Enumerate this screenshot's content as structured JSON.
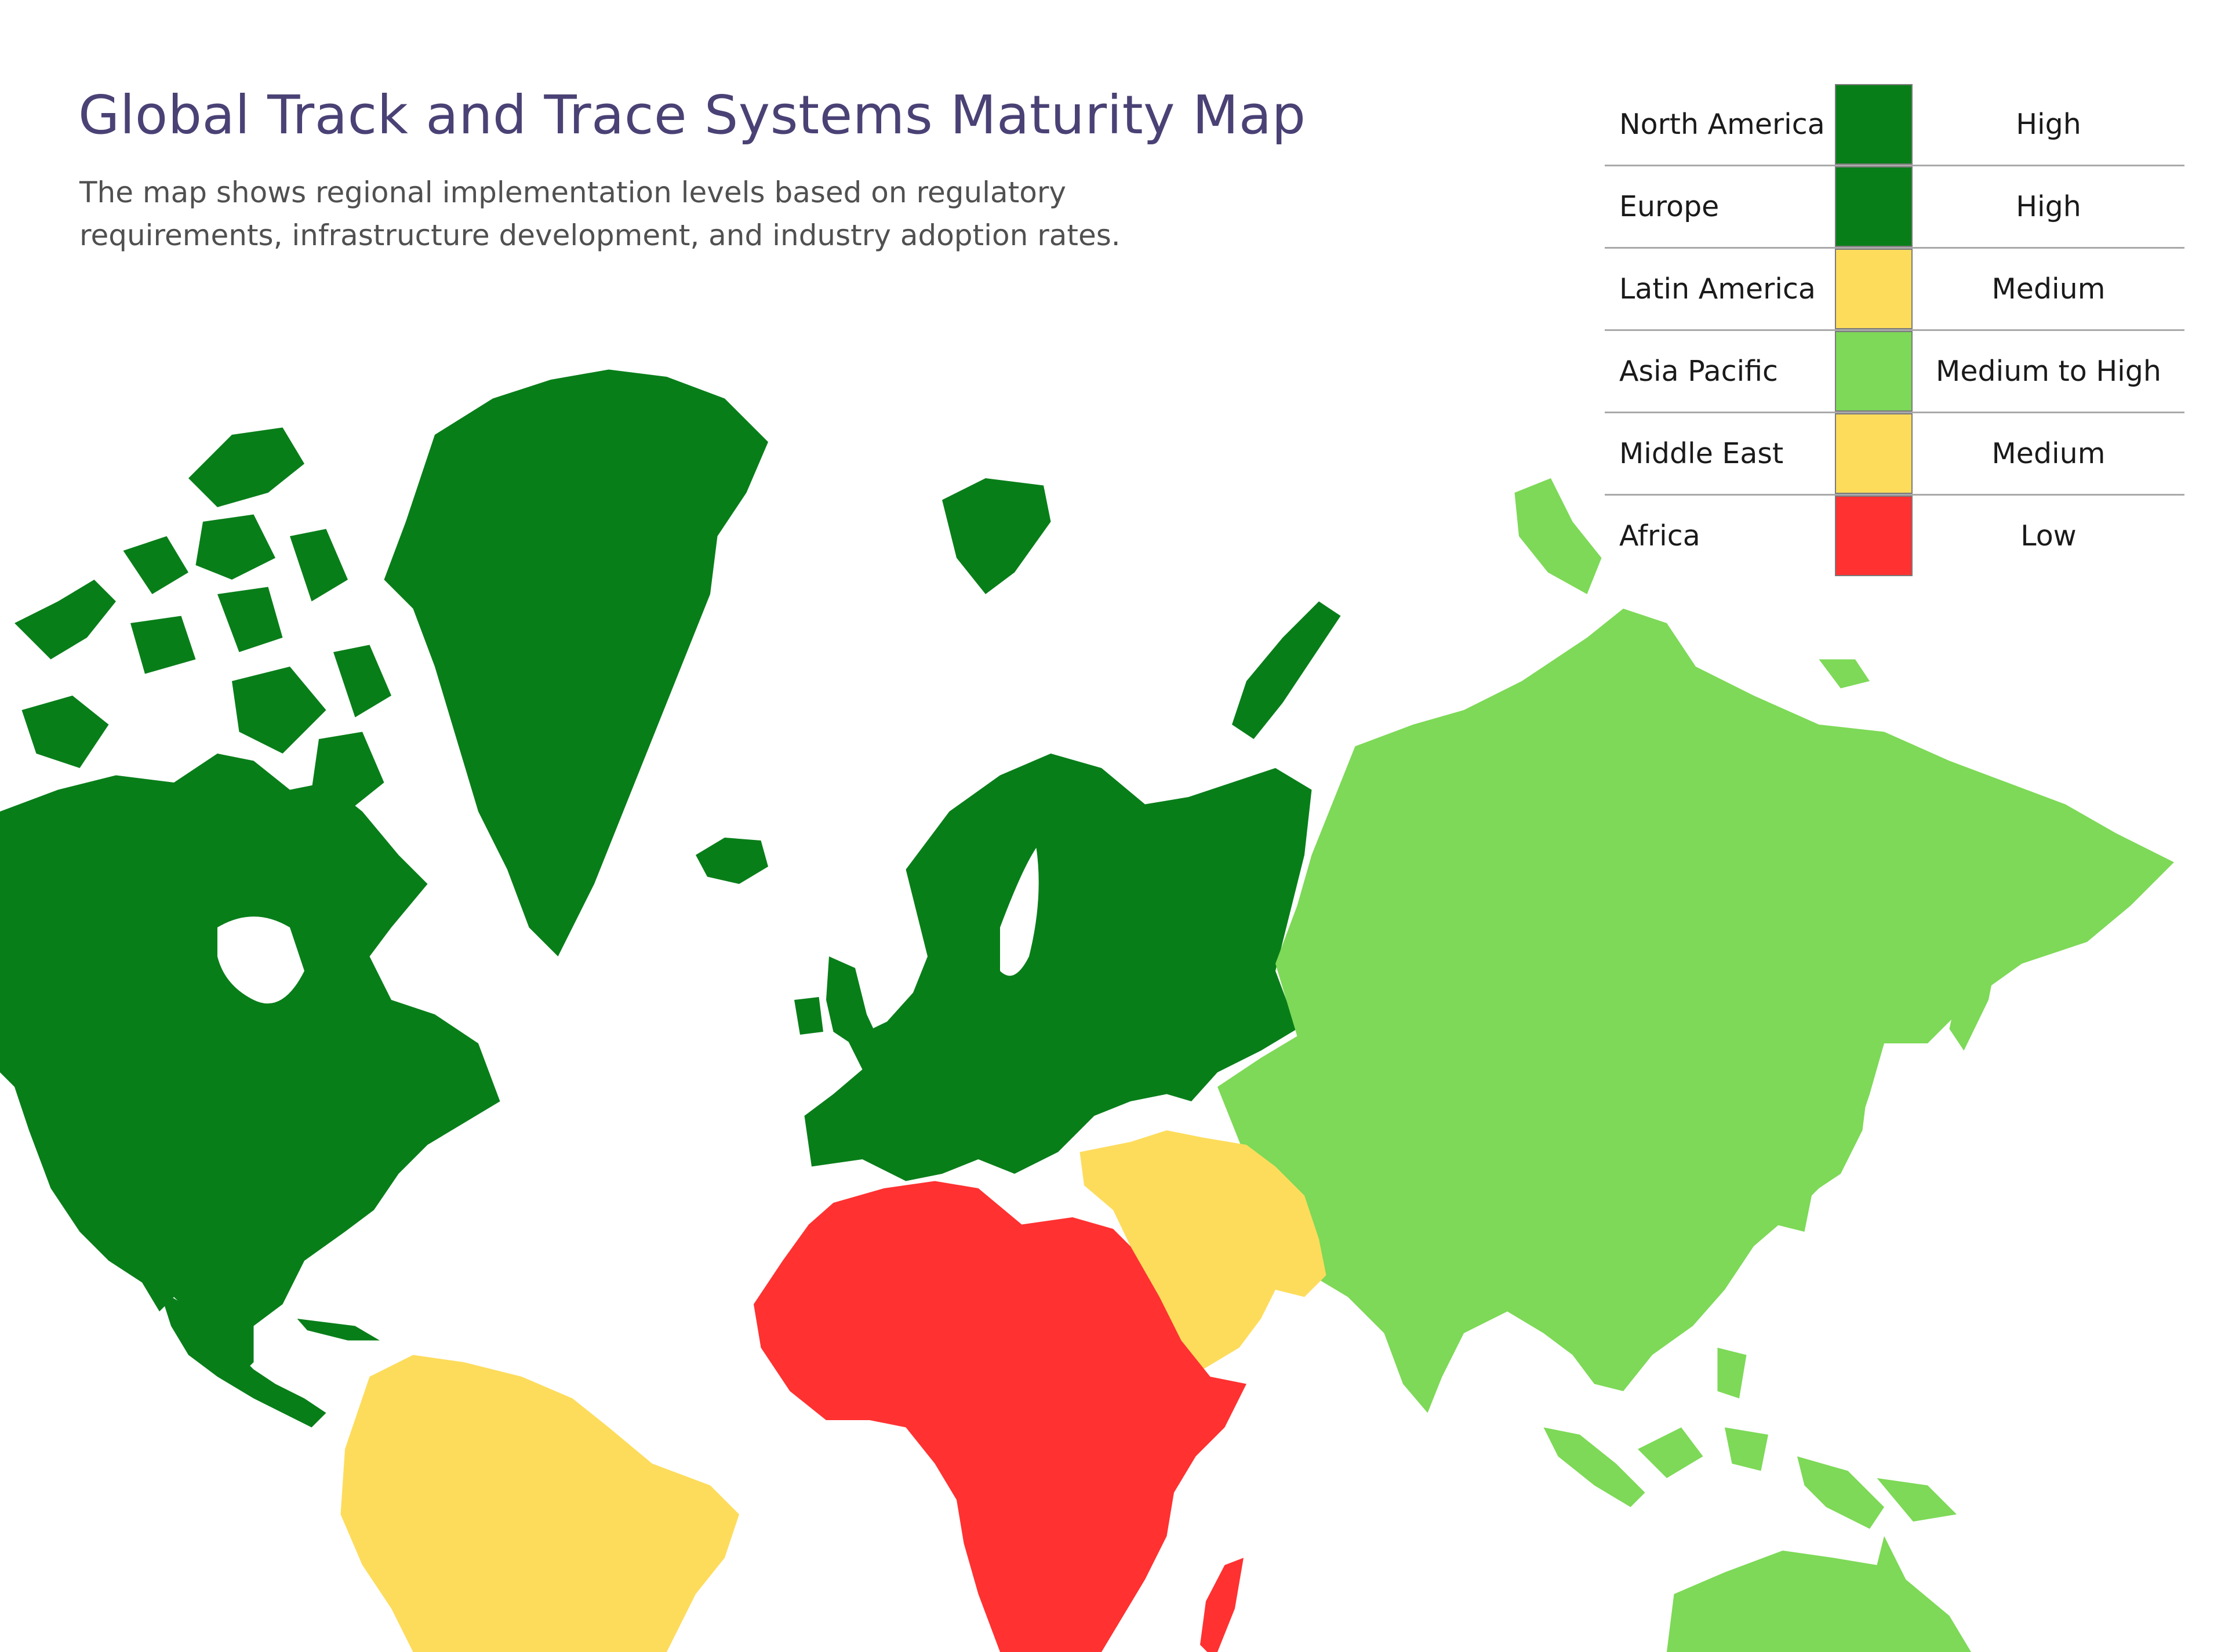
{
  "title": "Global Track and Trace Systems Maturity Map",
  "subtitle": "The map shows regional implementation levels based on regulatory requirements, infrastructure development, and industry adoption rates.",
  "colors": {
    "high": "#087e19",
    "medium_to_high": "#7dd957",
    "medium": "#fddc5c",
    "low": "#ff3131",
    "title_color": "#4a4275"
  },
  "legend": [
    {
      "region": "North America",
      "level": "High",
      "color": "#087e19"
    },
    {
      "region": "Europe",
      "level": "High",
      "color": "#087e19"
    },
    {
      "region": "Latin America",
      "level": "Medium",
      "color": "#fddc5c"
    },
    {
      "region": "Asia Pacific",
      "level": "Medium to High",
      "color": "#7dd957"
    },
    {
      "region": "Middle East",
      "level": "Medium",
      "color": "#fddc5c"
    },
    {
      "region": "Africa",
      "level": "Low",
      "color": "#ff3131"
    }
  ]
}
